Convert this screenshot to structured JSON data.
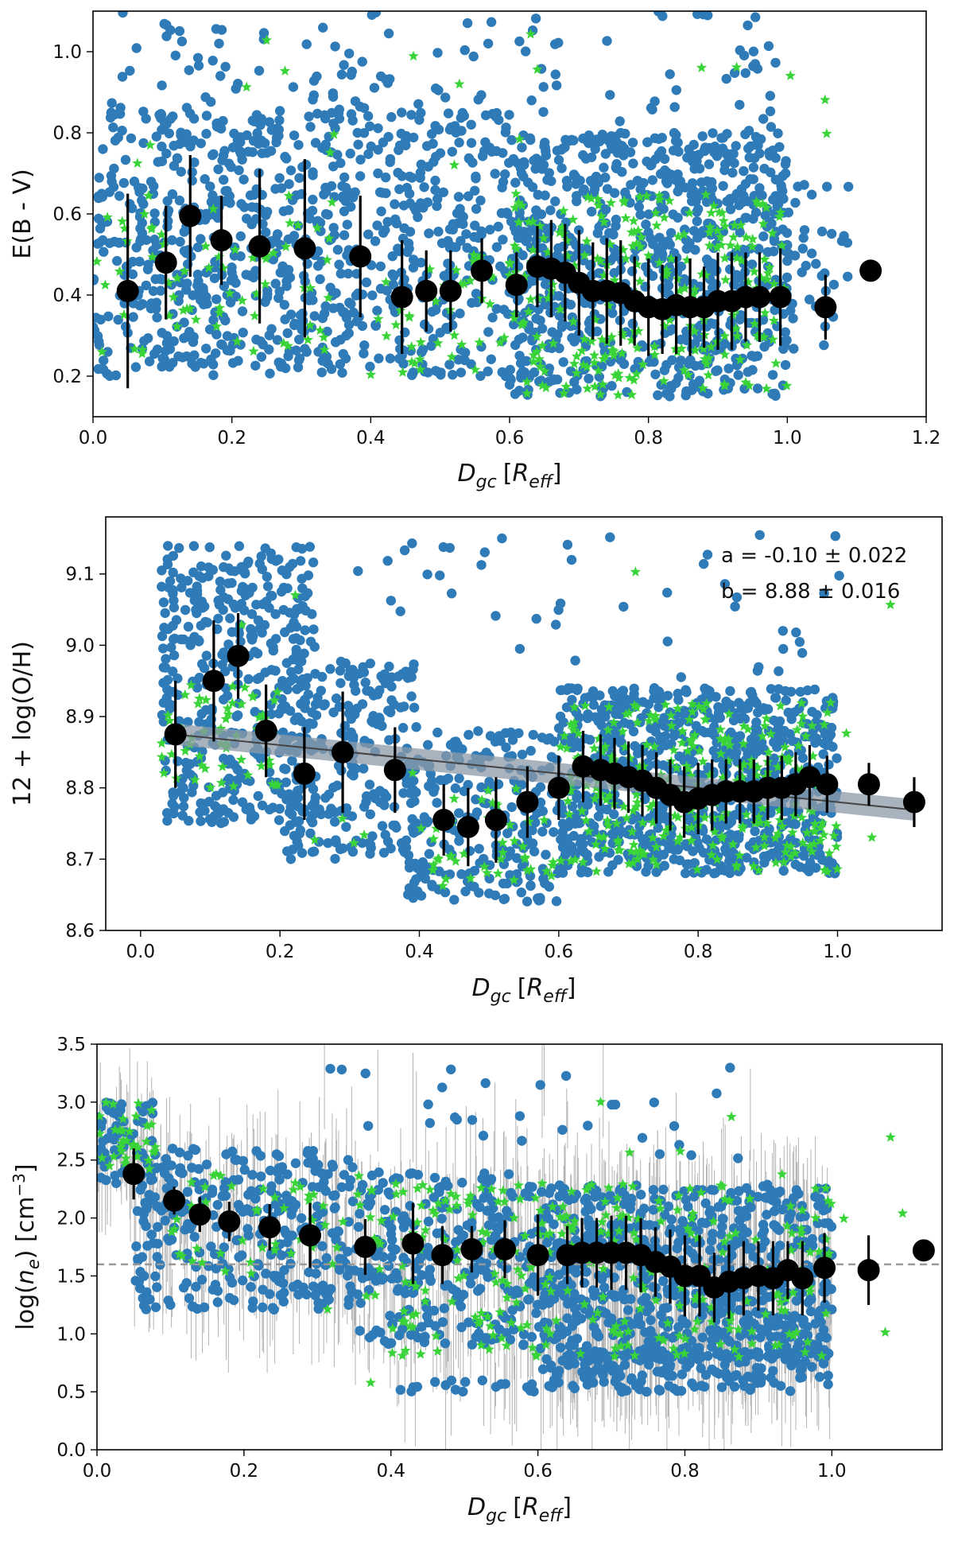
{
  "chart_data": [
    {
      "type": "scatter",
      "name": "ebv",
      "ylabel": "E(B - V)",
      "xlabel_main": "D",
      "xlabel_sub": "gc",
      "xlabel_bracket_open": "[",
      "xlabel_bracket_var": "R",
      "xlabel_bracket_sub": "eff",
      "xlabel_bracket_close": "]",
      "xlim": [
        0.0,
        1.2
      ],
      "ylim": [
        0.1,
        1.1
      ],
      "xticks": [
        0.0,
        0.2,
        0.4,
        0.6,
        0.8,
        1.0,
        1.2
      ],
      "xtick_labels": [
        "0.0",
        "0.2",
        "0.4",
        "0.6",
        "0.8",
        "1.0",
        "1.2"
      ],
      "yticks": [
        0.2,
        0.4,
        0.6,
        0.8,
        1.0
      ],
      "ytick_labels": [
        "0.2",
        "0.4",
        "0.6",
        "0.8",
        "1.0"
      ],
      "scatter_seed": 11,
      "scatter_groups": [
        {
          "x": [
            0.0,
            0.35
          ],
          "y": [
            0.2,
            0.85
          ],
          "n": 520
        },
        {
          "x": [
            0.35,
            0.6
          ],
          "y": [
            0.2,
            0.85
          ],
          "n": 320
        },
        {
          "x": [
            0.6,
            1.0
          ],
          "y": [
            0.15,
            0.8
          ],
          "n": 820
        },
        {
          "x": [
            0.0,
            1.0
          ],
          "y": [
            0.8,
            1.1
          ],
          "n": 130
        },
        {
          "x": [
            1.0,
            1.09
          ],
          "y": [
            0.25,
            0.7
          ],
          "n": 35
        }
      ],
      "star_groups": [
        {
          "x": [
            0.0,
            0.35
          ],
          "y": [
            0.25,
            0.65
          ],
          "n": 70
        },
        {
          "x": [
            0.4,
            0.6
          ],
          "y": [
            0.2,
            0.5
          ],
          "n": 40
        },
        {
          "x": [
            0.6,
            1.0
          ],
          "y": [
            0.15,
            0.65
          ],
          "n": 260
        },
        {
          "x": [
            0.03,
            1.12
          ],
          "y": [
            0.7,
            1.05
          ],
          "n": 18
        }
      ],
      "binned": {
        "x": [
          0.05,
          0.105,
          0.14,
          0.185,
          0.24,
          0.305,
          0.385,
          0.445,
          0.48,
          0.515,
          0.56,
          0.61,
          0.64,
          0.66,
          0.68,
          0.7,
          0.72,
          0.74,
          0.76,
          0.78,
          0.8,
          0.82,
          0.84,
          0.86,
          0.88,
          0.9,
          0.92,
          0.94,
          0.96,
          0.99,
          1.055,
          1.12
        ],
        "y": [
          0.41,
          0.48,
          0.595,
          0.535,
          0.52,
          0.515,
          0.495,
          0.395,
          0.41,
          0.41,
          0.46,
          0.425,
          0.47,
          0.465,
          0.455,
          0.43,
          0.41,
          0.41,
          0.405,
          0.385,
          0.37,
          0.365,
          0.375,
          0.37,
          0.37,
          0.385,
          0.385,
          0.395,
          0.395,
          0.395,
          0.37,
          0.46
        ],
        "err": [
          0.24,
          0.14,
          0.15,
          0.11,
          0.19,
          0.22,
          0.15,
          0.14,
          0.1,
          0.1,
          0.08,
          0.08,
          0.1,
          0.12,
          0.12,
          0.13,
          0.12,
          0.13,
          0.13,
          0.11,
          0.12,
          0.11,
          0.12,
          0.12,
          0.1,
          0.12,
          0.12,
          0.11,
          0.11,
          0.12,
          0.08,
          0.0
        ]
      }
    },
    {
      "type": "scatter",
      "name": "oh",
      "ylabel": "12 + log(O/H)",
      "xlabel_main": "D",
      "xlabel_sub": "gc",
      "xlabel_bracket_open": "[",
      "xlabel_bracket_var": "R",
      "xlabel_bracket_sub": "eff",
      "xlabel_bracket_close": "]",
      "xlim": [
        -0.05,
        1.15
      ],
      "ylim": [
        8.6,
        9.18
      ],
      "xticks": [
        0.0,
        0.2,
        0.4,
        0.6,
        0.8,
        1.0
      ],
      "xtick_labels": [
        "0.0",
        "0.2",
        "0.4",
        "0.6",
        "0.8",
        "1.0"
      ],
      "yticks": [
        8.6,
        8.7,
        8.8,
        8.9,
        9.0,
        9.1
      ],
      "ytick_labels": [
        "8.6",
        "8.7",
        "8.8",
        "8.9",
        "9.0",
        "9.1"
      ],
      "annotation_a": "a = -0.10 ± 0.022",
      "annotation_b": "b = 8.88 ± 0.016",
      "fit": {
        "a": -0.1,
        "b": 8.88,
        "x_range": [
          0.05,
          1.11
        ],
        "band": 0.015
      },
      "scatter_seed": 23,
      "scatter_groups": [
        {
          "x": [
            0.03,
            0.25
          ],
          "y": [
            8.75,
            9.14
          ],
          "n": 420
        },
        {
          "x": [
            0.2,
            0.4
          ],
          "y": [
            8.7,
            8.98
          ],
          "n": 240
        },
        {
          "x": [
            0.38,
            0.6
          ],
          "y": [
            8.64,
            8.88
          ],
          "n": 240
        },
        {
          "x": [
            0.6,
            1.0
          ],
          "y": [
            8.68,
            8.94
          ],
          "n": 860
        },
        {
          "x": [
            0.3,
            1.05
          ],
          "y": [
            8.95,
            9.16
          ],
          "n": 45
        }
      ],
      "star_groups": [
        {
          "x": [
            0.03,
            0.2
          ],
          "y": [
            8.8,
            8.96
          ],
          "n": 55
        },
        {
          "x": [
            0.4,
            0.6
          ],
          "y": [
            8.66,
            8.8
          ],
          "n": 45
        },
        {
          "x": [
            0.6,
            1.0
          ],
          "y": [
            8.68,
            8.92
          ],
          "n": 280
        },
        {
          "x": [
            0.05,
            1.12
          ],
          "y": [
            8.66,
            9.14
          ],
          "n": 20
        }
      ],
      "binned": {
        "x": [
          0.05,
          0.105,
          0.14,
          0.18,
          0.235,
          0.29,
          0.365,
          0.435,
          0.47,
          0.51,
          0.555,
          0.6,
          0.635,
          0.66,
          0.68,
          0.7,
          0.72,
          0.74,
          0.76,
          0.78,
          0.8,
          0.82,
          0.84,
          0.86,
          0.88,
          0.9,
          0.92,
          0.94,
          0.96,
          0.985,
          1.045,
          1.11
        ],
        "y": [
          8.875,
          8.95,
          8.985,
          8.88,
          8.82,
          8.85,
          8.825,
          8.755,
          8.745,
          8.755,
          8.78,
          8.8,
          8.83,
          8.825,
          8.82,
          8.815,
          8.81,
          8.8,
          8.79,
          8.78,
          8.785,
          8.79,
          8.795,
          8.795,
          8.795,
          8.8,
          8.8,
          8.805,
          8.815,
          8.805,
          8.805,
          8.78
        ],
        "err": [
          0.075,
          0.085,
          0.06,
          0.065,
          0.065,
          0.085,
          0.06,
          0.05,
          0.055,
          0.06,
          0.05,
          0.045,
          0.05,
          0.05,
          0.05,
          0.05,
          0.05,
          0.05,
          0.05,
          0.05,
          0.05,
          0.05,
          0.045,
          0.045,
          0.045,
          0.045,
          0.045,
          0.045,
          0.045,
          0.04,
          0.03,
          0.035
        ]
      }
    },
    {
      "type": "scatter",
      "name": "ne",
      "ylabel_pre": "log(",
      "ylabel_var": "n",
      "ylabel_sub": "e",
      "ylabel_mid": ") [cm",
      "ylabel_sup": "−3",
      "ylabel_post": "]",
      "xlabel_main": "D",
      "xlabel_sub": "gc",
      "xlabel_bracket_open": "[",
      "xlabel_bracket_var": "R",
      "xlabel_bracket_sub": "eff",
      "xlabel_bracket_close": "]",
      "xlim": [
        0.0,
        1.15
      ],
      "ylim": [
        0.0,
        3.5
      ],
      "xticks": [
        0.0,
        0.2,
        0.4,
        0.6,
        0.8,
        1.0
      ],
      "xtick_labels": [
        "0.0",
        "0.2",
        "0.4",
        "0.6",
        "0.8",
        "1.0"
      ],
      "yticks": [
        0.0,
        0.5,
        1.0,
        1.5,
        2.0,
        2.5,
        3.0,
        3.5
      ],
      "ytick_labels": [
        "0.0",
        "0.5",
        "1.0",
        "1.5",
        "2.0",
        "2.5",
        "3.0",
        "3.5"
      ],
      "hline": 1.6,
      "scatter_seed": 37,
      "scatter_groups": [
        {
          "x": [
            0.0,
            0.08
          ],
          "y": [
            2.3,
            3.0
          ],
          "n": 60
        },
        {
          "x": [
            0.05,
            0.35
          ],
          "y": [
            1.2,
            2.6
          ],
          "n": 320
        },
        {
          "x": [
            0.35,
            0.6
          ],
          "y": [
            0.9,
            2.4
          ],
          "n": 280
        },
        {
          "x": [
            0.6,
            1.0
          ],
          "y": [
            0.6,
            2.3
          ],
          "n": 820
        },
        {
          "x": [
            0.4,
            1.0
          ],
          "y": [
            0.5,
            0.6
          ],
          "n": 60
        },
        {
          "x": [
            0.65,
            0.95
          ],
          "y": [
            0.8,
            0.85
          ],
          "n": 60
        },
        {
          "x": [
            0.3,
            0.9
          ],
          "y": [
            2.5,
            3.3
          ],
          "n": 30
        }
      ],
      "star_groups": [
        {
          "x": [
            0.0,
            0.08
          ],
          "y": [
            2.4,
            3.0
          ],
          "n": 35
        },
        {
          "x": [
            0.1,
            0.4
          ],
          "y": [
            1.5,
            2.4
          ],
          "n": 60
        },
        {
          "x": [
            0.4,
            1.0
          ],
          "y": [
            0.8,
            2.3
          ],
          "n": 270
        },
        {
          "x": [
            0.3,
            1.12
          ],
          "y": [
            0.5,
            3.4
          ],
          "n": 18
        }
      ],
      "binned": {
        "x": [
          0.05,
          0.105,
          0.14,
          0.18,
          0.235,
          0.29,
          0.365,
          0.43,
          0.47,
          0.51,
          0.555,
          0.6,
          0.64,
          0.66,
          0.68,
          0.7,
          0.72,
          0.74,
          0.76,
          0.78,
          0.8,
          0.82,
          0.84,
          0.86,
          0.88,
          0.9,
          0.92,
          0.94,
          0.96,
          0.99,
          1.05,
          1.125
        ],
        "y": [
          2.38,
          2.15,
          2.03,
          1.97,
          1.92,
          1.85,
          1.75,
          1.78,
          1.68,
          1.73,
          1.73,
          1.68,
          1.68,
          1.7,
          1.7,
          1.7,
          1.7,
          1.68,
          1.62,
          1.58,
          1.5,
          1.5,
          1.4,
          1.45,
          1.48,
          1.5,
          1.48,
          1.55,
          1.48,
          1.57,
          1.55,
          1.72
        ],
        "err": [
          0.22,
          0.12,
          0.15,
          0.17,
          0.2,
          0.28,
          0.24,
          0.35,
          0.25,
          0.2,
          0.25,
          0.35,
          0.25,
          0.3,
          0.3,
          0.32,
          0.32,
          0.32,
          0.3,
          0.32,
          0.35,
          0.35,
          0.3,
          0.32,
          0.32,
          0.3,
          0.32,
          0.25,
          0.32,
          0.3,
          0.3,
          0.0
        ]
      }
    }
  ],
  "colors": {
    "scatter": "#2e7bb8",
    "star": "#38d438",
    "binned": "#000000",
    "fit_band": "#8c9aa8",
    "fit_line": "#444444",
    "hline": "#999999",
    "ne_errbar": "#b3b3b3"
  }
}
